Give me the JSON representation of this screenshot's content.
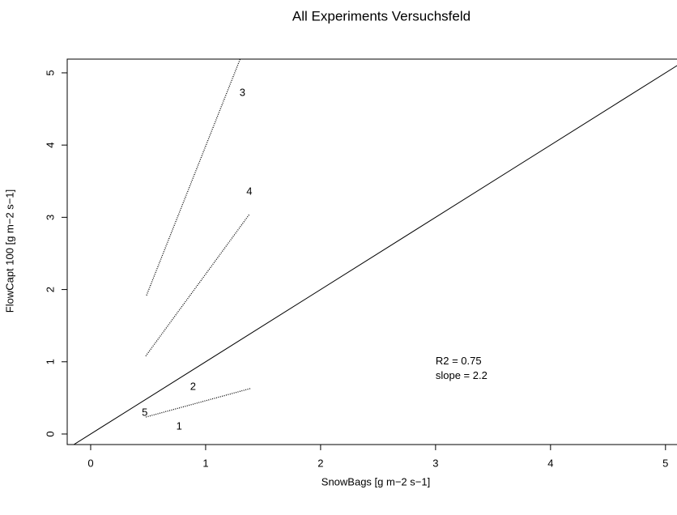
{
  "chart_data": {
    "type": "line",
    "title": "All Experiments Versuchsfeld",
    "x_label": "SnowBags [g m−2 s−1]",
    "y_label": "FlowCapt 100 [g m−2 s−1]",
    "xlim": [
      -0.204,
      5.1
    ],
    "ylim": [
      -0.146,
      5.19
    ],
    "xticks": [
      0,
      1,
      2,
      3,
      4,
      5
    ],
    "yticks": [
      0,
      1,
      2,
      3,
      4,
      5
    ],
    "identity_line": true,
    "series": [
      {
        "x": [
          0.486,
          1.3
        ],
        "values": [
          1.92,
          5.19
        ],
        "color": "#000000",
        "dash": "dotted"
      },
      {
        "x": [
          0.479,
          1.38
        ],
        "values": [
          1.08,
          3.04
        ],
        "color": "#000000",
        "dash": "dotted"
      },
      {
        "x": [
          0.48,
          1.39
        ],
        "values": [
          0.235,
          0.63
        ],
        "color": "#000000",
        "dash": "dotted"
      }
    ],
    "annotations": [
      {
        "text": "3",
        "x": 1.32,
        "y": 4.72
      },
      {
        "text": "4",
        "x": 1.38,
        "y": 3.35
      },
      {
        "text": "2",
        "x": 0.89,
        "y": 0.65
      },
      {
        "text": "5",
        "x": 0.47,
        "y": 0.29
      },
      {
        "text": "1",
        "x": 0.77,
        "y": 0.1
      },
      {
        "text": "R2 = 0.75",
        "x": 3.0,
        "y": 1.0,
        "anchor": "start"
      },
      {
        "text": "slope = 2.2",
        "x": 3.0,
        "y": 0.8,
        "anchor": "start"
      }
    ]
  }
}
